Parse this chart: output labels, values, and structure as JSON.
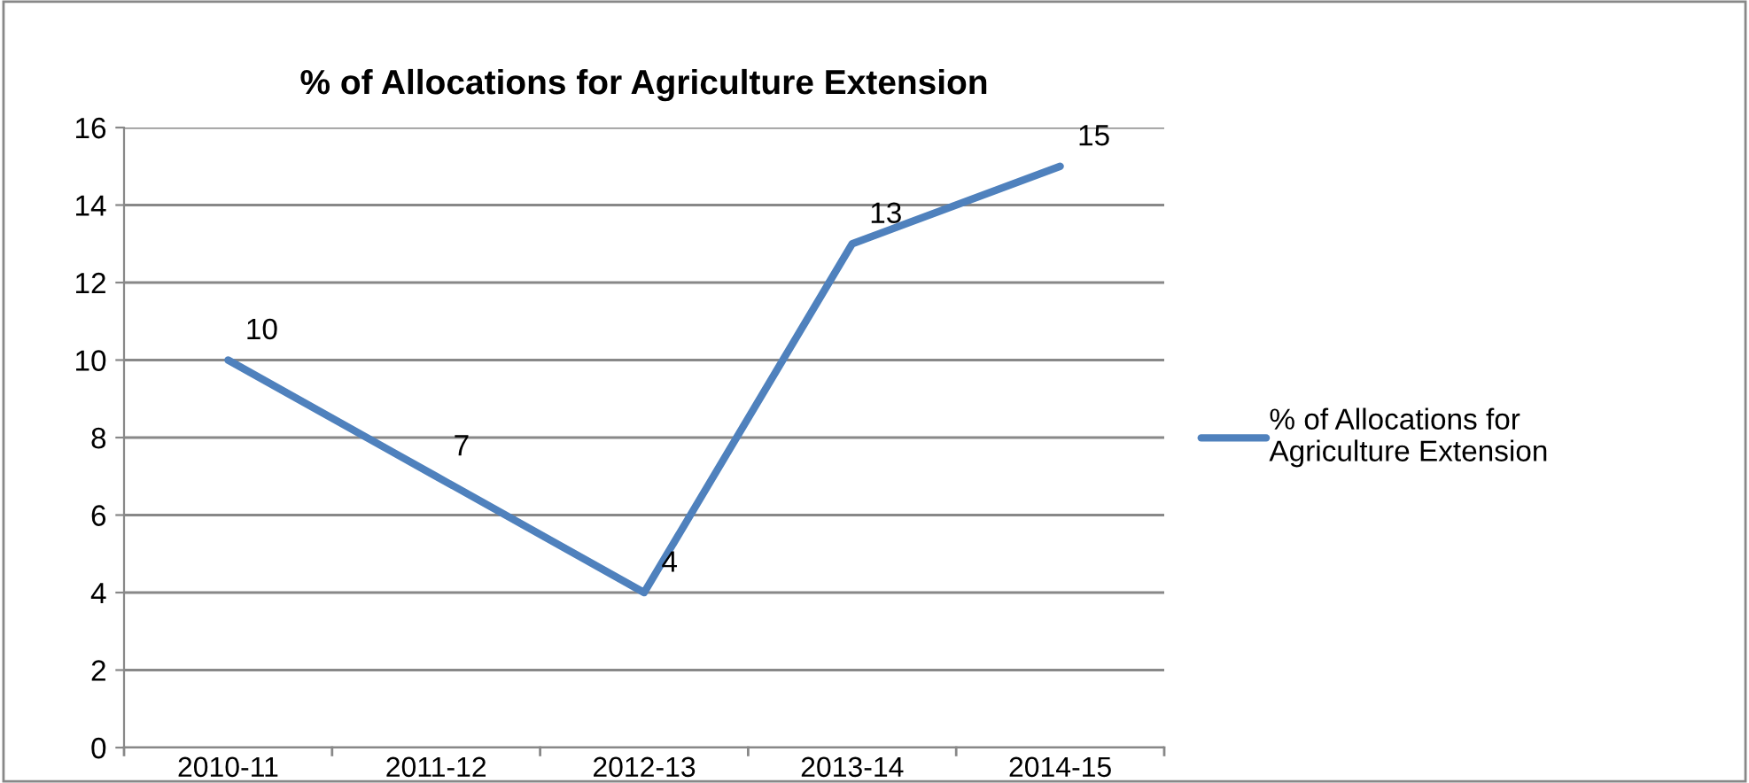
{
  "chart_data": {
    "type": "line",
    "title": "% of Allocations for Agriculture Extension",
    "categories": [
      "2010-11",
      "2011-12",
      "2012-13",
      "2013-14",
      "2014-15"
    ],
    "series": [
      {
        "name": "% of Allocations for Agriculture Extension",
        "color": "#4f81bd",
        "values": [
          10,
          7,
          4,
          13,
          15
        ]
      }
    ],
    "ylim": [
      0,
      16
    ],
    "yticks": [
      0,
      2,
      4,
      6,
      8,
      10,
      12,
      14,
      16
    ],
    "grid": "y",
    "legend": "right",
    "data_labels": true,
    "marker": "none",
    "line_style": "solid"
  }
}
